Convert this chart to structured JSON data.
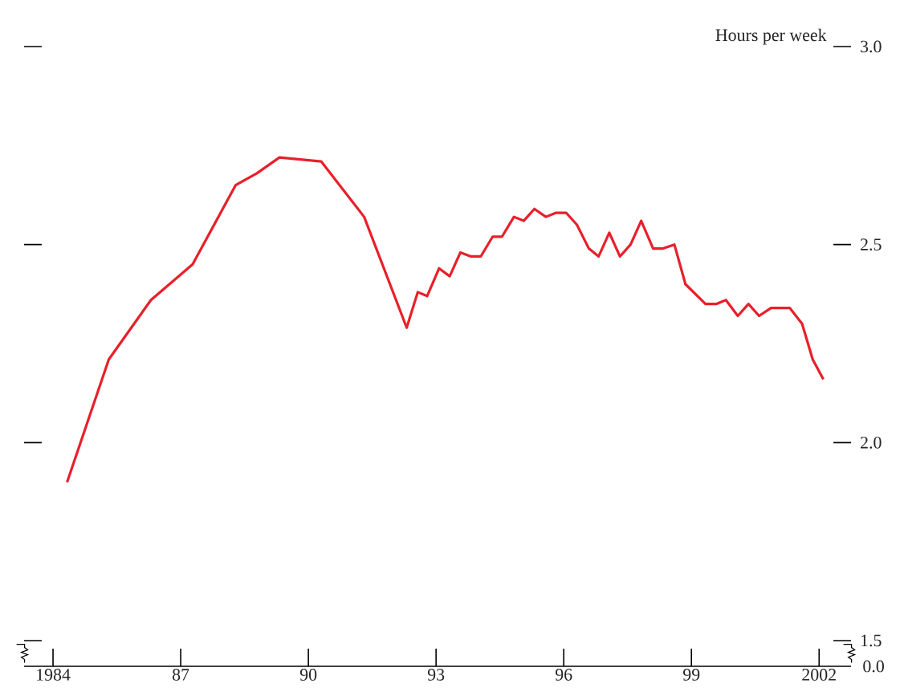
{
  "chart_data": {
    "type": "line",
    "ylabel": "Hours per week",
    "x": [
      1984.33,
      1985.31,
      1986.3,
      1987.28,
      1988.29,
      1988.79,
      1989.32,
      1990.3,
      1991.31,
      1992.31,
      1992.57,
      1992.79,
      1993.07,
      1993.32,
      1993.57,
      1993.82,
      1994.05,
      1994.33,
      1994.55,
      1994.83,
      1995.06,
      1995.31,
      1995.58,
      1995.81,
      1996.06,
      1996.31,
      1996.59,
      1996.82,
      1997.07,
      1997.32,
      1997.57,
      1997.82,
      1998.1,
      1998.33,
      1998.6,
      1998.86,
      1999.33,
      1999.58,
      1999.81,
      2000.09,
      2000.34,
      2000.59,
      2000.87,
      2001.31,
      2001.6,
      2001.85,
      2002.1
    ],
    "series": [
      {
        "color": "#e8202a",
        "values": [
          1.9,
          2.21,
          2.36,
          2.45,
          2.65,
          2.68,
          2.72,
          2.71,
          2.57,
          2.29,
          2.38,
          2.37,
          2.44,
          2.42,
          2.48,
          2.47,
          2.47,
          2.52,
          2.52,
          2.57,
          2.56,
          2.59,
          2.57,
          2.58,
          2.58,
          2.55,
          2.49,
          2.47,
          2.53,
          2.47,
          2.5,
          2.56,
          2.49,
          2.49,
          2.5,
          2.4,
          2.35,
          2.35,
          2.36,
          2.32,
          2.35,
          2.32,
          2.34,
          2.34,
          2.3,
          2.21,
          2.16
        ]
      }
    ],
    "xlim": [
      1983.32,
      2002.75
    ],
    "xticks": [
      1984,
      {
        "value": 1987,
        "label": "87"
      },
      {
        "value": 1990,
        "label": "90"
      },
      {
        "value": 1993,
        "label": "93"
      },
      {
        "value": 1996,
        "label": "96"
      },
      {
        "value": 1999,
        "label": "99"
      },
      2002
    ],
    "ylim": [
      1.5,
      3.0
    ],
    "yticks": [
      1.5,
      {
        "value": 2,
        "label": "2.0"
      },
      2.5,
      {
        "value": 3,
        "label": "3.0"
      }
    ],
    "annotations": [
      "0.0"
    ],
    "grid": false,
    "legend": false,
    "marker": "none",
    "line_style": "solid"
  }
}
